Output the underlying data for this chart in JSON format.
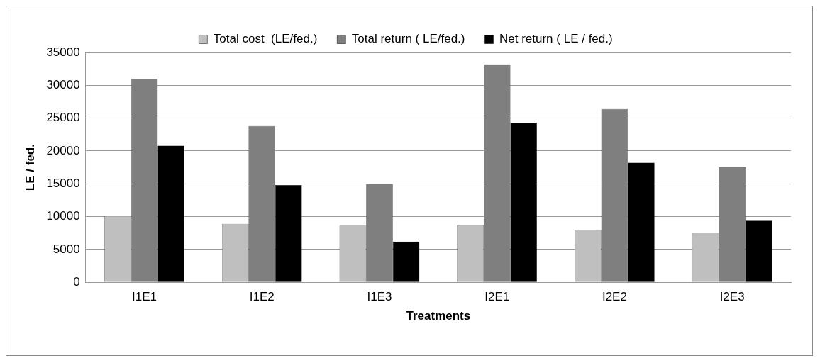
{
  "chart_data": {
    "type": "bar",
    "xlabel": "Treatments",
    "ylabel": "LE / fed.",
    "categories": [
      "I1E1",
      "I1E2",
      "I1E3",
      "I2E1",
      "I2E2",
      "I2E3"
    ],
    "series": [
      {
        "name": "Total cost  (LE/fed.)",
        "color": "#bfbfbf",
        "values": [
          10100,
          8900,
          8600,
          8700,
          8000,
          7500
        ]
      },
      {
        "name": "Total return ( LE/fed.)",
        "color": "#7f7f7f",
        "values": [
          31000,
          23800,
          15000,
          33200,
          26400,
          17500
        ]
      },
      {
        "name": "Net return ( LE / fed.)",
        "color": "#000000",
        "values": [
          20800,
          14800,
          6200,
          24300,
          18200,
          9400
        ]
      }
    ],
    "ylim": [
      0,
      35000
    ],
    "yticks": [
      0,
      5000,
      10000,
      15000,
      20000,
      25000,
      30000,
      35000
    ],
    "grid": "y",
    "legend": "top"
  }
}
